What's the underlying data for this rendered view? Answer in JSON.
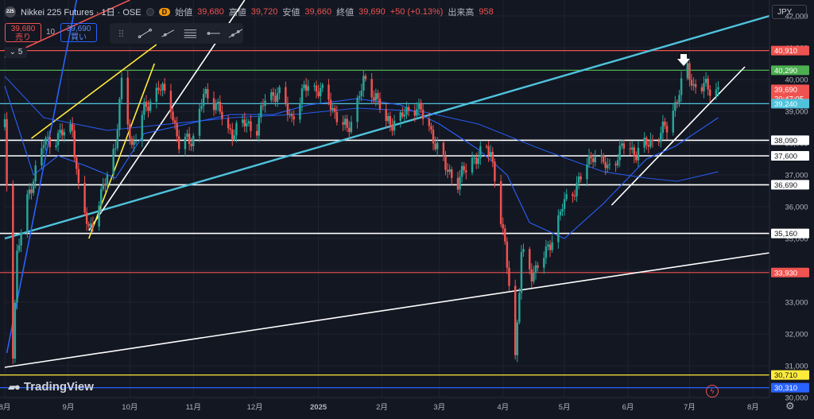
{
  "header": {
    "logo": "225",
    "symbol": "Nikkei 225 Futures · 1日 · OSE",
    "badge": "D",
    "open_label": "始値",
    "open": "39,680",
    "high_label": "高値",
    "high": "39,720",
    "low_label": "安値",
    "low": "39,660",
    "close_label": "終値",
    "close": "39,690",
    "change": "+50 (+0.13%)",
    "volume_label": "出来高",
    "volume": "958"
  },
  "trade": {
    "sell_price": "39,680",
    "sell_label": "売り",
    "qty": "10",
    "buy_price": "39,690",
    "buy_label": "買い"
  },
  "indicators_collapse": "5",
  "currency": "JPY",
  "branding": "TradingView",
  "colors": {
    "background": "#131722",
    "up": "#26a69a",
    "down": "#ef5350",
    "ma": "#2962ff",
    "trend_cyan": "#4fc3dc",
    "green_level": "#4caf50",
    "red_level": "#ef5350",
    "yellow": "#ffeb3b",
    "white": "#ffffff"
  },
  "chart_data": {
    "type": "candlestick",
    "ylim": [
      30000,
      42500
    ],
    "y_ticks": [
      "42,000",
      "41,000",
      "40,000",
      "39,000",
      "38,000",
      "37,000",
      "36,000",
      "35,000",
      "34,000",
      "33,000",
      "32,000",
      "31,000",
      "30,000"
    ],
    "x_tick_labels": [
      "8月",
      "9月",
      "10月",
      "11月",
      "12月",
      "2025",
      "2月",
      "3月",
      "4月",
      "5月",
      "6月",
      "7月",
      "8月"
    ],
    "x_ticks": [
      "2024-08-01",
      "2024-09-01",
      "2024-10-01",
      "2024-11-01",
      "2024-12-01",
      "2025-01-01",
      "2025-02-01",
      "2025-03-01",
      "2025-04-01",
      "2025-05-01",
      "2025-06-01",
      "2025-07-01",
      "2025-08-01"
    ],
    "x_range": [
      "2024-08-01",
      "2025-08-09"
    ],
    "close_path": [
      [
        "2024-08-01",
        38500
      ],
      [
        "2024-08-05",
        31500
      ],
      [
        "2024-08-07",
        34500
      ],
      [
        "2024-08-13",
        36500
      ],
      [
        "2024-08-20",
        38000
      ],
      [
        "2024-08-27",
        38200
      ],
      [
        "2024-09-03",
        38500
      ],
      [
        "2024-09-06",
        36500
      ],
      [
        "2024-09-11",
        35300
      ],
      [
        "2024-09-17",
        36300
      ],
      [
        "2024-09-24",
        38000
      ],
      [
        "2024-09-27",
        39800
      ],
      [
        "2024-10-02",
        37900
      ],
      [
        "2024-10-08",
        39000
      ],
      [
        "2024-10-15",
        39800
      ],
      [
        "2024-10-21",
        39200
      ],
      [
        "2024-10-25",
        37900
      ],
      [
        "2024-11-01",
        38200
      ],
      [
        "2024-11-06",
        39500
      ],
      [
        "2024-11-12",
        39300
      ],
      [
        "2024-11-18",
        38300
      ],
      [
        "2024-11-25",
        38600
      ],
      [
        "2024-12-02",
        38500
      ],
      [
        "2024-12-06",
        39400
      ],
      [
        "2024-12-12",
        39600
      ],
      [
        "2024-12-19",
        38800
      ],
      [
        "2024-12-27",
        39900
      ],
      [
        "2025-01-06",
        39400
      ],
      [
        "2025-01-10",
        38800
      ],
      [
        "2025-01-15",
        38400
      ],
      [
        "2025-01-23",
        39900
      ],
      [
        "2025-01-29",
        39500
      ],
      [
        "2025-02-03",
        38600
      ],
      [
        "2025-02-10",
        38800
      ],
      [
        "2025-02-18",
        39200
      ],
      [
        "2025-02-26",
        38200
      ],
      [
        "2025-03-04",
        37200
      ],
      [
        "2025-03-10",
        36800
      ],
      [
        "2025-03-17",
        37500
      ],
      [
        "2025-03-26",
        37800
      ],
      [
        "2025-03-31",
        35600
      ],
      [
        "2025-04-04",
        33700
      ],
      [
        "2025-04-07",
        31300
      ],
      [
        "2025-04-10",
        34500
      ],
      [
        "2025-04-15",
        33900
      ],
      [
        "2025-04-22",
        34500
      ],
      [
        "2025-04-30",
        36000
      ],
      [
        "2025-05-09",
        36900
      ],
      [
        "2025-05-15",
        37700
      ],
      [
        "2025-05-22",
        37200
      ],
      [
        "2025-05-30",
        37900
      ],
      [
        "2025-06-05",
        37700
      ],
      [
        "2025-06-13",
        38100
      ],
      [
        "2025-06-20",
        38500
      ],
      [
        "2025-06-27",
        39800
      ],
      [
        "2025-06-30",
        40300
      ],
      [
        "2025-07-03",
        39800
      ],
      [
        "2025-07-09",
        39750
      ],
      [
        "2025-07-15",
        39690
      ]
    ],
    "ma_short_path": [
      [
        "2024-08-01",
        39800
      ],
      [
        "2024-08-15",
        37000
      ],
      [
        "2024-08-27",
        37600
      ],
      [
        "2024-09-09",
        37300
      ],
      [
        "2024-09-24",
        36900
      ],
      [
        "2024-10-08",
        38300
      ],
      [
        "2024-10-29",
        38600
      ],
      [
        "2024-11-19",
        38900
      ],
      [
        "2024-12-10",
        38900
      ],
      [
        "2024-12-27",
        39200
      ],
      [
        "2025-01-20",
        39400
      ],
      [
        "2025-02-10",
        39200
      ],
      [
        "2025-03-01",
        38600
      ],
      [
        "2025-03-20",
        37800
      ],
      [
        "2025-04-03",
        37000
      ],
      [
        "2025-04-14",
        35500
      ],
      [
        "2025-05-01",
        35000
      ],
      [
        "2025-05-20",
        36100
      ],
      [
        "2025-06-10",
        37500
      ],
      [
        "2025-06-24",
        37900
      ],
      [
        "2025-07-15",
        38800
      ]
    ],
    "ma_long_path": [
      [
        "2024-08-01",
        40100
      ],
      [
        "2024-08-20",
        38800
      ],
      [
        "2024-09-20",
        38400
      ],
      [
        "2024-10-20",
        38600
      ],
      [
        "2024-11-20",
        38800
      ],
      [
        "2024-12-20",
        38900
      ],
      [
        "2025-01-20",
        39100
      ],
      [
        "2025-02-20",
        39000
      ],
      [
        "2025-03-20",
        38600
      ],
      [
        "2025-04-20",
        37800
      ],
      [
        "2025-05-20",
        37100
      ],
      [
        "2025-06-10",
        36900
      ],
      [
        "2025-06-25",
        36800
      ],
      [
        "2025-07-15",
        37100
      ]
    ],
    "horizontal_levels": [
      {
        "value": 40910,
        "label": "40,910",
        "color": "#ef5350"
      },
      {
        "value": 40290,
        "label": "40,290",
        "color": "#4caf50"
      },
      {
        "value": 39690,
        "label": "39,690",
        "color": "#ef5350",
        "countdown": "20:47:05"
      },
      {
        "value": 39240,
        "label": "39,240",
        "color": "#4fc3dc"
      },
      {
        "value": 38090,
        "label": "38,090",
        "color": "#ffffff"
      },
      {
        "value": 37600,
        "label": "37,600",
        "color": "#ffffff"
      },
      {
        "value": 36690,
        "label": "36,690",
        "color": "#ffffff"
      },
      {
        "value": 35160,
        "label": "35,160",
        "color": "#ffffff"
      },
      {
        "value": 33930,
        "label": "33,930",
        "color": "#ef5350"
      },
      {
        "value": 30710,
        "label": "30,710",
        "color": "#ffeb3b"
      },
      {
        "value": 30310,
        "label": "30,310",
        "color": "#2962ff"
      }
    ],
    "trend_lines": [
      {
        "name": "long-cyan",
        "color": "#4fc3dc",
        "from": [
          "2024-08-01",
          35000
        ],
        "to": [
          "2025-08-09",
          42000
        ]
      },
      {
        "name": "long-white",
        "color": "#ffffff",
        "from": [
          "2024-08-01",
          30950
        ],
        "to": [
          "2025-08-09",
          34550
        ]
      },
      {
        "name": "channel-white",
        "color": "#ffffff",
        "from": [
          "2024-09-11",
          35250
        ],
        "to": [
          "2024-11-26",
          42500
        ]
      },
      {
        "name": "rally-white",
        "color": "#ffffff",
        "from": [
          "2025-05-24",
          36050
        ],
        "to": [
          "2025-07-28",
          40400
        ]
      },
      {
        "name": "yellow-upper",
        "color": "#ffeb3b",
        "from": [
          "2024-08-14",
          38150
        ],
        "to": [
          "2024-10-14",
          41100
        ]
      },
      {
        "name": "yellow-lower",
        "color": "#ffeb3b",
        "from": [
          "2024-09-11",
          35000
        ],
        "to": [
          "2024-10-13",
          40500
        ]
      },
      {
        "name": "blue-steep",
        "color": "#2962ff",
        "from": [
          "2024-08-02",
          31400
        ],
        "to": [
          "2024-09-05",
          42500
        ]
      },
      {
        "name": "red-steep",
        "color": "#ef5350",
        "from": [
          "2024-08-01",
          40700
        ],
        "to": [
          "2024-10-01",
          42500
        ]
      }
    ]
  }
}
